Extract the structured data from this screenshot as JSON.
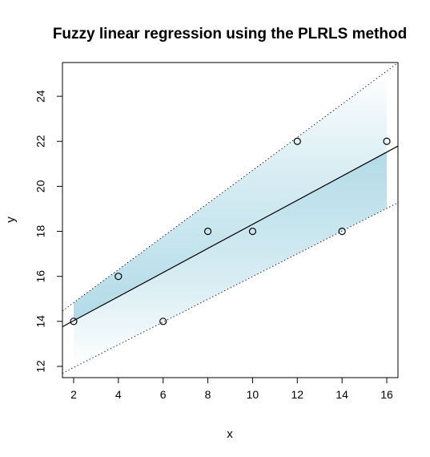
{
  "chart_data": {
    "type": "scatter",
    "title": "Fuzzy linear regression using the PLRLS method",
    "xlabel": "x",
    "ylabel": "y",
    "xlim": [
      1.5,
      16.5
    ],
    "ylim": [
      11.5,
      25.5
    ],
    "x_ticks": [
      2,
      4,
      6,
      8,
      10,
      12,
      14,
      16
    ],
    "y_ticks": [
      12,
      14,
      16,
      18,
      20,
      22,
      24
    ],
    "grid": false,
    "points": [
      {
        "x": 2,
        "y": 14
      },
      {
        "x": 4,
        "y": 16
      },
      {
        "x": 6,
        "y": 14
      },
      {
        "x": 8,
        "y": 18
      },
      {
        "x": 10,
        "y": 18
      },
      {
        "x": 12,
        "y": 22
      },
      {
        "x": 14,
        "y": 18
      },
      {
        "x": 16,
        "y": 22
      }
    ],
    "central_line": {
      "intercept": 12.96,
      "slope": 0.535
    },
    "upper_line": {
      "intercept": 13.36,
      "slope": 0.735
    },
    "lower_line": {
      "intercept": 10.94,
      "slope": 0.505
    },
    "band_x_range": [
      2,
      16
    ],
    "band_color": "#a9d7e5",
    "line_color": "#000000"
  }
}
